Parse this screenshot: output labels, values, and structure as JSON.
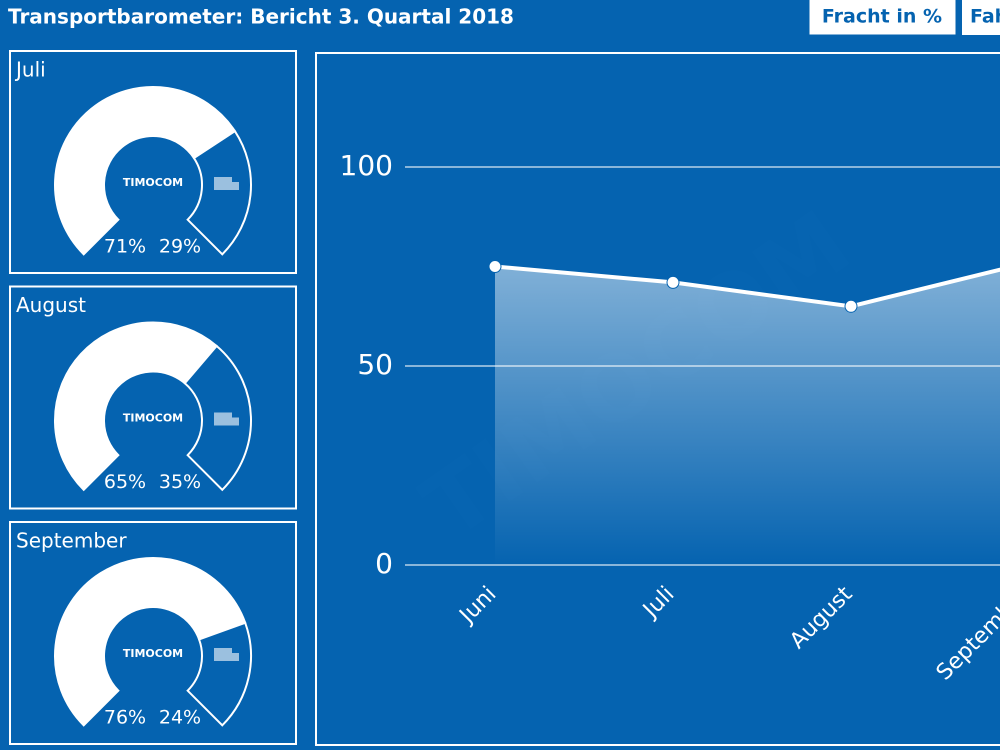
{
  "header": {
    "title": "Transportbarometer: Bericht 3. Quartal 2018",
    "buttons": [
      "Fracht in %",
      "Fahrzeuge in %"
    ]
  },
  "brand": "TIMOCOM",
  "chart_data": [
    {
      "type": "gauge",
      "title": "Juli",
      "values": [
        71,
        29
      ],
      "value_labels": [
        "71%",
        "29%"
      ],
      "colors": [
        "#ffffff",
        "#0563b0"
      ]
    },
    {
      "type": "gauge",
      "title": "August",
      "values": [
        65,
        35
      ],
      "value_labels": [
        "65%",
        "35%"
      ],
      "colors": [
        "#ffffff",
        "#0563b0"
      ]
    },
    {
      "type": "gauge",
      "title": "September",
      "values": [
        76,
        24
      ],
      "value_labels": [
        "76%",
        "24%"
      ],
      "colors": [
        "#ffffff",
        "#0563b0"
      ]
    },
    {
      "type": "line",
      "categories": [
        "Juni",
        "Juli",
        "August",
        "September"
      ],
      "values": [
        75,
        71,
        65,
        76
      ],
      "color": "#ffffff",
      "ylim": [
        0,
        100
      ],
      "yticks": [
        0,
        50,
        100
      ],
      "grid": true
    }
  ]
}
